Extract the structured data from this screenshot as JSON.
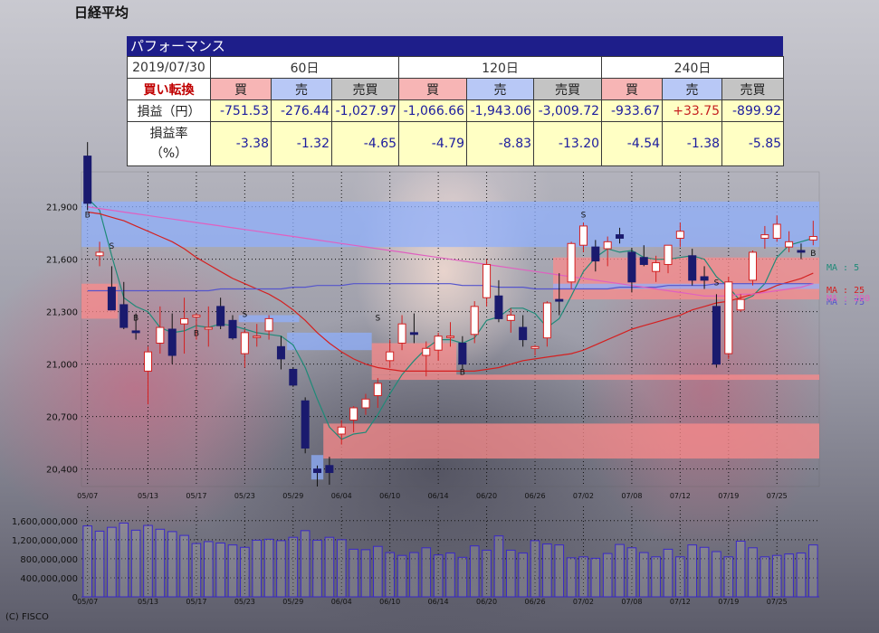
{
  "title": "日経平均",
  "performance": {
    "header": "パフォーマンス",
    "date": "2019/07/30",
    "signal": "買い転換",
    "periods": [
      "60日",
      "120日",
      "240日"
    ],
    "columns": [
      "買",
      "売",
      "売買"
    ],
    "profit_label": "損益（円）",
    "rate_label_line1": "損益率",
    "rate_label_line2": "（%）",
    "profit": [
      "-751.53",
      "-276.44",
      "-1,027.97",
      "-1,066.66",
      "-1,943.06",
      "-3,009.72",
      "-933.67",
      "+33.75",
      "-899.92"
    ],
    "rate": [
      "-3.38",
      "-1.32",
      "-4.65",
      "-4.79",
      "-8.83",
      "-13.20",
      "-4.54",
      "-1.38",
      "-5.85"
    ]
  },
  "chart_data": {
    "type": "candlestick",
    "title": "日経平均",
    "price_ticks": [
      "21,900",
      "21,600",
      "21,300",
      "21,000",
      "20,700",
      "20,400"
    ],
    "price_tick_values": [
      21900,
      21600,
      21300,
      21000,
      20700,
      20400
    ],
    "ylim": [
      20300,
      22100
    ],
    "volume_ticks": [
      "1,600,000,000",
      "1,200,000,000",
      "800,000,000",
      "400,000,000",
      "0"
    ],
    "volume_tick_values": [
      1600000000,
      1200000000,
      800000000,
      400000000,
      0
    ],
    "volume_ylim": [
      0,
      1900000000
    ],
    "date_labels": [
      "05/07",
      "05/13",
      "05/17",
      "05/23",
      "05/29",
      "06/04",
      "06/10",
      "06/14",
      "06/20",
      "06/26",
      "07/02",
      "07/08",
      "07/12",
      "07/19",
      "07/25"
    ],
    "date_label_index": [
      0,
      5,
      9,
      13,
      17,
      21,
      25,
      29,
      33,
      37,
      41,
      45,
      49,
      53,
      57
    ],
    "candles": [
      [
        22190,
        22270,
        21880,
        21920
      ],
      [
        21620,
        21700,
        21560,
        21640
      ],
      [
        21440,
        21560,
        21310,
        21310
      ],
      [
        21340,
        21470,
        21200,
        21210
      ],
      [
        21190,
        21290,
        21140,
        21180
      ],
      [
        20960,
        21100,
        20770,
        21070
      ],
      [
        21120,
        21330,
        21060,
        21210
      ],
      [
        21200,
        21290,
        21000,
        21050
      ],
      [
        21230,
        21380,
        21060,
        21260
      ],
      [
        21270,
        21290,
        21140,
        21280
      ],
      [
        21200,
        21330,
        21100,
        21210
      ],
      [
        21330,
        21380,
        21200,
        21220
      ],
      [
        21250,
        21280,
        21140,
        21150
      ],
      [
        21060,
        21200,
        20980,
        21180
      ],
      [
        21160,
        21230,
        21100,
        21160
      ],
      [
        21190,
        21280,
        21140,
        21260
      ],
      [
        21100,
        21160,
        20970,
        21030
      ],
      [
        20970,
        20980,
        20870,
        20880
      ],
      [
        20790,
        20810,
        20490,
        20520
      ],
      [
        20400,
        20420,
        20300,
        20380
      ],
      [
        20420,
        20470,
        20310,
        20380
      ],
      [
        20600,
        20680,
        20540,
        20640
      ],
      [
        20680,
        20760,
        20610,
        20750
      ],
      [
        20750,
        20830,
        20710,
        20800
      ],
      [
        20820,
        20920,
        20750,
        20890
      ],
      [
        21020,
        21140,
        20980,
        21070
      ],
      [
        21120,
        21280,
        21080,
        21230
      ],
      [
        21180,
        21290,
        21120,
        21170
      ],
      [
        21050,
        21130,
        20930,
        21090
      ],
      [
        21080,
        21180,
        21020,
        21160
      ],
      [
        21160,
        21240,
        21100,
        21160
      ],
      [
        21120,
        21160,
        20970,
        21000
      ],
      [
        21170,
        21360,
        21120,
        21330
      ],
      [
        21380,
        21600,
        21330,
        21570
      ],
      [
        21390,
        21480,
        21240,
        21260
      ],
      [
        21250,
        21320,
        21180,
        21280
      ],
      [
        21210,
        21280,
        21100,
        21140
      ],
      [
        21090,
        21110,
        21050,
        21100
      ],
      [
        21150,
        21360,
        21100,
        21350
      ],
      [
        21370,
        21520,
        21280,
        21360
      ],
      [
        21470,
        21700,
        21430,
        21690
      ],
      [
        21680,
        21810,
        21640,
        21790
      ],
      [
        21670,
        21710,
        21530,
        21590
      ],
      [
        21660,
        21730,
        21560,
        21700
      ],
      [
        21740,
        21780,
        21690,
        21720
      ],
      [
        21640,
        21660,
        21410,
        21470
      ],
      [
        21610,
        21680,
        21560,
        21570
      ],
      [
        21530,
        21620,
        21470,
        21580
      ],
      [
        21570,
        21680,
        21520,
        21680
      ],
      [
        21720,
        21810,
        21670,
        21760
      ],
      [
        21620,
        21660,
        21450,
        21480
      ],
      [
        21500,
        21560,
        21430,
        21480
      ],
      [
        21330,
        21400,
        20980,
        21000
      ],
      [
        21060,
        21500,
        21030,
        21470
      ],
      [
        21310,
        21400,
        21300,
        21370
      ],
      [
        21480,
        21650,
        21450,
        21640
      ],
      [
        21720,
        21790,
        21660,
        21740
      ],
      [
        21720,
        21850,
        21700,
        21800
      ],
      [
        21670,
        21760,
        21640,
        21700
      ],
      [
        21650,
        21690,
        21600,
        21640
      ],
      [
        21710,
        21820,
        21680,
        21730
      ]
    ],
    "volumes": [
      1490000000,
      1380000000,
      1460000000,
      1550000000,
      1400000000,
      1500000000,
      1420000000,
      1370000000,
      1290000000,
      1120000000,
      1160000000,
      1130000000,
      1090000000,
      1040000000,
      1190000000,
      1210000000,
      1180000000,
      1250000000,
      1390000000,
      1190000000,
      1250000000,
      1200000000,
      1000000000,
      990000000,
      1060000000,
      930000000,
      870000000,
      930000000,
      1030000000,
      880000000,
      920000000,
      830000000,
      1070000000,
      980000000,
      1280000000,
      980000000,
      920000000,
      1180000000,
      1110000000,
      1090000000,
      820000000,
      840000000,
      810000000,
      910000000,
      1100000000,
      1030000000,
      930000000,
      840000000,
      1000000000,
      840000000,
      1090000000,
      1040000000,
      950000000,
      840000000,
      1170000000,
      1030000000,
      840000000,
      870000000,
      900000000,
      920000000,
      1090000000
    ],
    "series": [
      {
        "name": "MA : 5",
        "color": "#1f8a78",
        "values": [
          21950,
          21880,
          21620,
          21380,
          21330,
          21300,
          21210,
          21180,
          21190,
          21220,
          21210,
          21230,
          21220,
          21200,
          21180,
          21170,
          21160,
          21110,
          20980,
          20800,
          20640,
          20570,
          20600,
          20610,
          20710,
          20830,
          20940,
          21020,
          21090,
          21140,
          21140,
          21120,
          21150,
          21250,
          21270,
          21320,
          21320,
          21290,
          21210,
          21260,
          21390,
          21530,
          21610,
          21660,
          21640,
          21650,
          21610,
          21600,
          21600,
          21610,
          21620,
          21600,
          21500,
          21440,
          21360,
          21390,
          21460,
          21610,
          21680,
          21700,
          21720
        ]
      },
      {
        "name": "MA : 25",
        "color": "#d42020",
        "values": [
          21870,
          21860,
          21840,
          21820,
          21790,
          21760,
          21730,
          21700,
          21660,
          21610,
          21570,
          21530,
          21490,
          21460,
          21430,
          21400,
          21360,
          21310,
          21250,
          21180,
          21120,
          21070,
          21030,
          21000,
          20980,
          20970,
          20960,
          20960,
          20960,
          20960,
          20960,
          20960,
          20960,
          20970,
          20980,
          21000,
          21020,
          21030,
          21040,
          21050,
          21060,
          21080,
          21110,
          21140,
          21170,
          21200,
          21220,
          21240,
          21260,
          21280,
          21310,
          21330,
          21350,
          21360,
          21380,
          21400,
          21420,
          21450,
          21470,
          21490,
          21520
        ]
      },
      {
        "name": "MA : 75",
        "color": "#5555cc",
        "values": [
          21420,
          21420,
          21420,
          21420,
          21420,
          21420,
          21420,
          21420,
          21420,
          21420,
          21420,
          21430,
          21430,
          21430,
          21430,
          21430,
          21430,
          21440,
          21440,
          21450,
          21450,
          21450,
          21460,
          21460,
          21460,
          21460,
          21460,
          21460,
          21460,
          21460,
          21460,
          21450,
          21450,
          21450,
          21440,
          21440,
          21440,
          21430,
          21430,
          21430,
          21430,
          21430,
          21430,
          21430,
          21440,
          21440,
          21440,
          21440,
          21450,
          21450,
          21450,
          21450,
          21460,
          21460,
          21460,
          21460,
          21460,
          21460,
          21460,
          21460,
          21460
        ]
      },
      {
        "name": "MA : 200",
        "color": "#e060c0",
        "values": [
          21900,
          21890,
          21880,
          21870,
          21860,
          21850,
          21840,
          21830,
          21820,
          21810,
          21800,
          21790,
          21780,
          21770,
          21760,
          21750,
          21740,
          21730,
          21720,
          21710,
          21700,
          21690,
          21680,
          21670,
          21660,
          21650,
          21640,
          21630,
          21620,
          21610,
          21600,
          21590,
          21580,
          21570,
          21560,
          21550,
          21540,
          21530,
          21520,
          21510,
          21500,
          21490,
          21480,
          21470,
          21460,
          21450,
          21440,
          21430,
          21420,
          21410,
          21400,
          21390,
          21390,
          21390,
          21400,
          21400,
          21410,
          21420,
          21430,
          21440,
          21460
        ]
      }
    ],
    "signals": [
      {
        "index": 0,
        "label": "B",
        "price": 21840
      },
      {
        "index": 2,
        "label": "S",
        "price": 21660
      },
      {
        "index": 4,
        "label": "B",
        "price": 21250
      },
      {
        "index": 9,
        "label": "B",
        "price": 21160
      },
      {
        "index": 13,
        "label": "S",
        "price": 21270
      },
      {
        "index": 24,
        "label": "S",
        "price": 21250
      },
      {
        "index": 31,
        "label": "B",
        "price": 20940
      },
      {
        "index": 41,
        "label": "S",
        "price": 21840
      },
      {
        "index": 52,
        "label": "S",
        "price": 21450
      },
      {
        "index": 60,
        "label": "B",
        "price": 21620
      }
    ],
    "bands": [
      {
        "kind": "sell",
        "i0": 0,
        "i1": 61,
        "y0": 21880,
        "y1": 21930
      },
      {
        "kind": "sell",
        "i0": 0,
        "i1": 61,
        "y0": 21670,
        "y1": 21880
      },
      {
        "kind": "buy",
        "i0": 0,
        "i1": 3,
        "y0": 21260,
        "y1": 21460
      },
      {
        "kind": "sell",
        "i0": 13,
        "i1": 18,
        "y0": 21240,
        "y1": 21280
      },
      {
        "kind": "sell",
        "i0": 17,
        "i1": 24,
        "y0": 21080,
        "y1": 21180
      },
      {
        "kind": "sell",
        "i0": 19,
        "i1": 20,
        "y0": 20340,
        "y1": 20480
      },
      {
        "kind": "buy",
        "i0": 24,
        "i1": 31,
        "y0": 20940,
        "y1": 21120
      },
      {
        "kind": "buy",
        "i0": 24,
        "i1": 61,
        "y0": 20910,
        "y1": 20940
      },
      {
        "kind": "buy",
        "i0": 20,
        "i1": 61,
        "y0": 20460,
        "y1": 20660
      },
      {
        "kind": "buy",
        "i0": 39,
        "i1": 61,
        "y0": 21370,
        "y1": 21610
      },
      {
        "kind": "sell",
        "i0": 39,
        "i1": 61,
        "y0": 21430,
        "y1": 21460
      }
    ]
  },
  "credit": "(C) FISCO"
}
